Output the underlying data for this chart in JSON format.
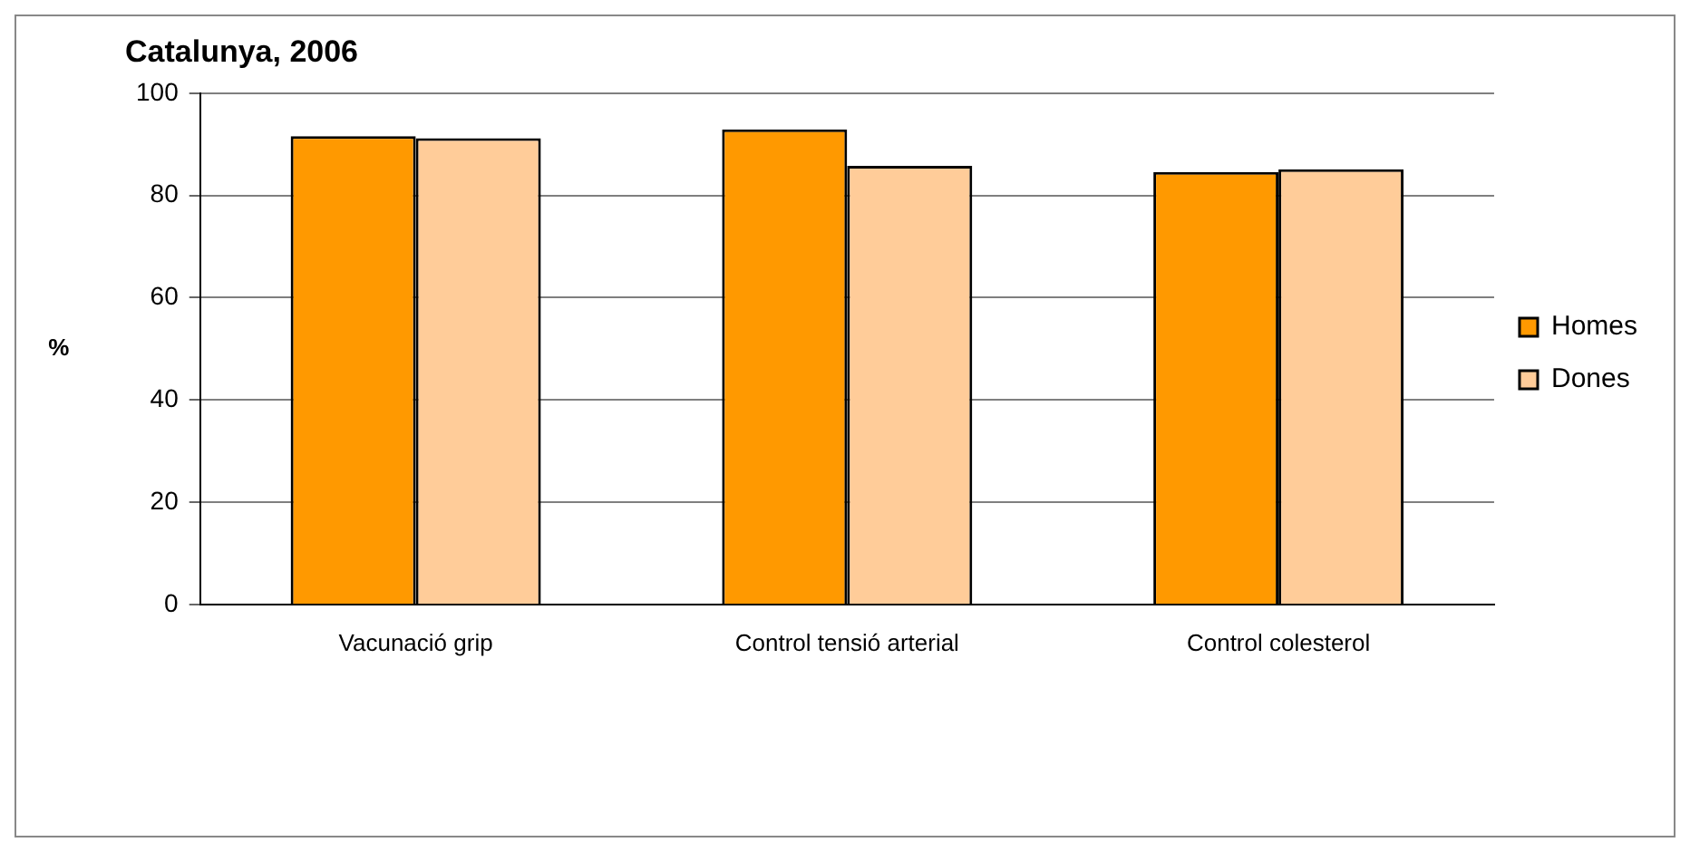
{
  "chart_data": {
    "type": "bar",
    "title": "Catalunya, 2006",
    "ylabel": "%",
    "categories": [
      "Vacunació grip",
      "Control tensió arterial",
      "Control colesterol"
    ],
    "series": [
      {
        "name": "Homes",
        "color": "#ff9900",
        "values": [
          91.6,
          92.9,
          84.6
        ]
      },
      {
        "name": "Dones",
        "color": "#ffcc99",
        "values": [
          91.2,
          85.8,
          85.1
        ]
      }
    ],
    "ylim": [
      0,
      100
    ],
    "yticks": [
      0,
      20,
      40,
      60,
      80,
      100
    ],
    "grid": "y",
    "legend": "right"
  }
}
